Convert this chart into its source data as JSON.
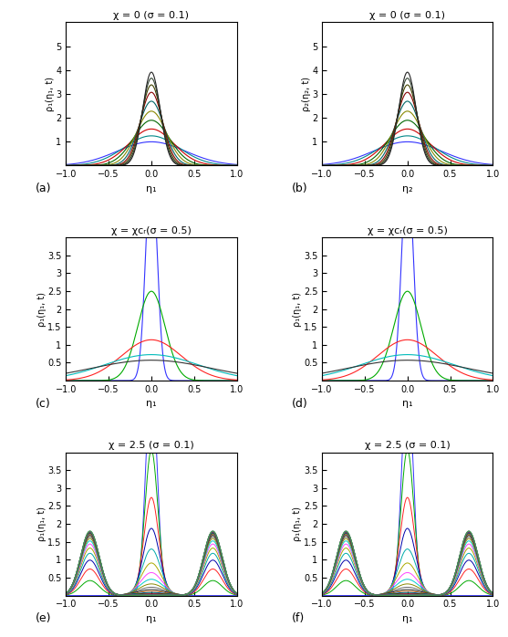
{
  "panels": [
    {
      "title": "χ = 0 (σ = 0.1)",
      "xlabel": "η₁",
      "ylabel": "ρ₁(η₁, t)",
      "ylim": [
        0,
        6
      ],
      "label": "(a)"
    },
    {
      "title": "χ = 0 (σ = 0.1)",
      "xlabel": "η₂",
      "ylabel": "ρ₂(η₂, t)",
      "ylim": [
        0,
        6
      ],
      "label": "(b)"
    },
    {
      "title": "χ = χᴄᵣ(σ = 0.5)",
      "xlabel": "η₁",
      "ylabel": "ρ₁(η₁, t)",
      "ylim": [
        0,
        4
      ],
      "label": "(c)"
    },
    {
      "title": "χ = χᴄᵣ(σ = 0.5)",
      "xlabel": "η₁",
      "ylabel": "ρ₁(η₁, t)",
      "ylim": [
        0,
        4
      ],
      "label": "(d)"
    },
    {
      "title": "χ = 2.5 (σ = 0.1)",
      "xlabel": "η₁",
      "ylabel": "ρ₁(η₁, t)",
      "ylim": [
        0,
        4
      ],
      "label": "(e)"
    },
    {
      "title": "χ = 2.5 (σ = 0.1)",
      "xlabel": "η₁",
      "ylabel": "ρ₁(η₁, t)",
      "ylim": [
        0,
        4
      ],
      "label": "(f)"
    }
  ],
  "xlim": [
    -1,
    1
  ],
  "xticks": [
    -1,
    -0.5,
    0,
    0.5,
    1
  ],
  "panel_ab_sigmas": [
    0.4,
    0.32,
    0.26,
    0.21,
    0.175,
    0.148,
    0.13,
    0.118,
    0.109,
    0.102
  ],
  "panel_ab_colors": [
    "#3333ff",
    "#008888",
    "#cc0000",
    "#006600",
    "#888800",
    "#006666",
    "#880000",
    "#444400",
    "#334433",
    "#222222"
  ],
  "panel_cd_sigmas": [
    0.065,
    0.16,
    0.35,
    0.55,
    0.7
  ],
  "panel_cd_colors": [
    "#3333ff",
    "#00aa00",
    "#ff2222",
    "#00bbbb",
    "#333333"
  ],
  "panel_ef_n": 20,
  "panel_ef_mu_eq": 0.72,
  "panel_ef_colors": [
    "#3333ff",
    "#00aa00",
    "#ff2222",
    "#0000aa",
    "#00aaaa",
    "#aaaa00",
    "#ff44ff",
    "#00cccc",
    "#888800",
    "#666666",
    "#222222",
    "#cc6600",
    "#0066cc",
    "#006600",
    "#cc0000",
    "#6600cc",
    "#00cc66",
    "#aa4444",
    "#4444aa",
    "#44aa44"
  ]
}
